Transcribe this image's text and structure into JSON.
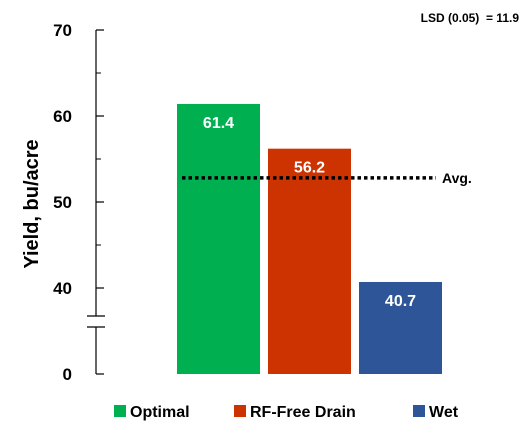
{
  "chart_data": {
    "type": "bar",
    "categories": [
      "Optimal",
      "RF-Free Drain",
      "Wet"
    ],
    "values": [
      61.4,
      56.2,
      40.7
    ],
    "data_labels": [
      "61.4",
      "56.2",
      "40.7"
    ],
    "colors": [
      "#00b050",
      "#cc3300",
      "#2e5597"
    ],
    "ylabel": "Yield, bu/acre",
    "ytick_labels": [
      "0",
      "40",
      "50",
      "60",
      "70"
    ],
    "ytick_values": [
      40,
      50,
      60,
      70
    ],
    "ylim": [
      30,
      70
    ],
    "axis_break": true,
    "reference_line": {
      "value": 52.8,
      "label": "Avg.",
      "style": "dotted"
    },
    "annotation": "LSD (0.05)  = 11.9",
    "legend": {
      "placement": "bottom",
      "items": [
        {
          "label": "Optimal",
          "color": "#00b050"
        },
        {
          "label": "RF-Free Drain",
          "color": "#cc3300"
        },
        {
          "label": "Wet",
          "color": "#2e5597"
        }
      ]
    },
    "grid": false
  }
}
